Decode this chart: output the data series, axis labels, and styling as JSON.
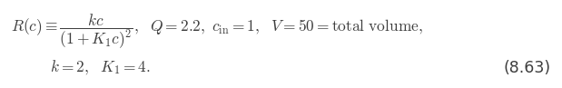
{
  "line1": "$R(c) \\equiv \\dfrac{kc}{(1+K_1c)^2}, \\quad Q = 2.2,\\ c_{\\mathrm{in}} = 1,\\ \\ V = 50 = \\mathrm{total\\ volume,}$",
  "line2": "$k = 2,\\ \\ K_1 = 4.$",
  "eq_number": "(8.63)",
  "text_color": "#3d3d3d",
  "background_color": "#ffffff",
  "fontsize": 12.5,
  "fig_width": 6.19,
  "fig_height": 0.97
}
